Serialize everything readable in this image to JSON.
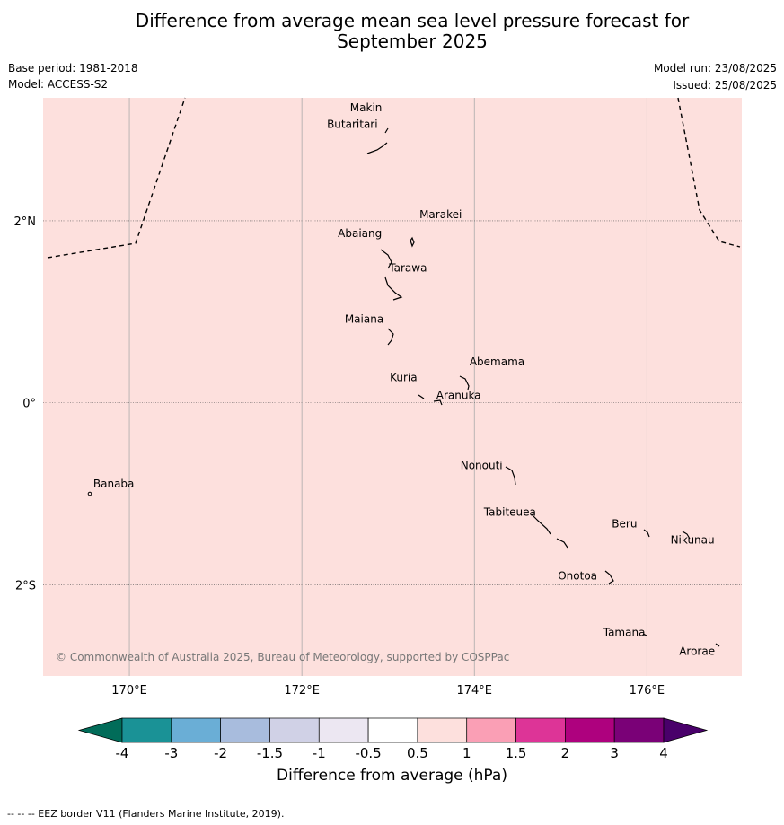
{
  "title_line1": "Difference from average mean sea level pressure forecast for",
  "title_line2": "September 2025",
  "base_period": "Base period: 1981-2018",
  "model": "Model: ACCESS-S2",
  "model_run": "Model run: 23/08/2025",
  "issued": "Issued: 25/08/2025",
  "copyright": "© Commonwealth of Australia 2025, Bureau of Meteorology, supported by COSPPac",
  "footnote": "-- -- -- EEZ border V11 (Flanders Marine Institute, 2019).",
  "map": {
    "lon_range": [
      169,
      177.1
    ],
    "lat_range": [
      -3.0,
      3.35
    ],
    "background_value_color": "#fde0dd",
    "lon_ticks": [
      {
        "value": 170,
        "label": "170°E"
      },
      {
        "value": 172,
        "label": "172°E"
      },
      {
        "value": 174,
        "label": "174°E"
      },
      {
        "value": 176,
        "label": "176°E"
      }
    ],
    "lat_ticks": [
      {
        "value": 2,
        "label": "2°N"
      },
      {
        "value": 0,
        "label": "0°"
      },
      {
        "value": -2,
        "label": "2°S"
      }
    ],
    "islands": [
      {
        "name": "Makin",
        "lon": 172.95,
        "lat": 3.2
      },
      {
        "name": "Butaritari",
        "lon": 172.9,
        "lat": 3.07
      },
      {
        "name": "Marakei",
        "lon": 173.28,
        "lat": 2.0
      },
      {
        "name": "Abaiang",
        "lon": 172.98,
        "lat": 1.85
      },
      {
        "name": "Tarawa",
        "lon": 172.98,
        "lat": 1.42
      },
      {
        "name": "Maiana",
        "lon": 173.0,
        "lat": 0.92
      },
      {
        "name": "Abemama",
        "lon": 173.85,
        "lat": 0.4
      },
      {
        "name": "Kuria",
        "lon": 173.4,
        "lat": 0.22
      },
      {
        "name": "Aranuka",
        "lon": 173.62,
        "lat": 0.17
      },
      {
        "name": "Nonouti",
        "lon": 174.4,
        "lat": -0.65
      },
      {
        "name": "Banaba",
        "lon": 169.53,
        "lat": -0.86
      },
      {
        "name": "Tabiteuea",
        "lon": 174.85,
        "lat": -1.3
      },
      {
        "name": "Beru",
        "lon": 175.98,
        "lat": -1.33
      },
      {
        "name": "Nikunau",
        "lon": 176.45,
        "lat": -1.38
      },
      {
        "name": "Onotoa",
        "lon": 175.57,
        "lat": -1.83
      },
      {
        "name": "Tamana",
        "lon": 175.98,
        "lat": -2.5
      },
      {
        "name": "Arorae",
        "lon": 176.82,
        "lat": -2.65
      }
    ]
  },
  "colorbar": {
    "label": "Difference from average (hPa)",
    "ticks": [
      "-4",
      "-3",
      "-2",
      "-1.5",
      "-1",
      "-0.5",
      "0.5",
      "1",
      "1.5",
      "2",
      "3",
      "4"
    ],
    "colors": [
      "#1a9296",
      "#6aaed6",
      "#a8bcdd",
      "#d0d1e6",
      "#ece7f2",
      "#ffffff",
      "#fde0dd",
      "#fa9fb5",
      "#dd3497",
      "#ae017e",
      "#7a0177"
    ],
    "under_color": "#016c59",
    "over_color": "#49006a"
  }
}
